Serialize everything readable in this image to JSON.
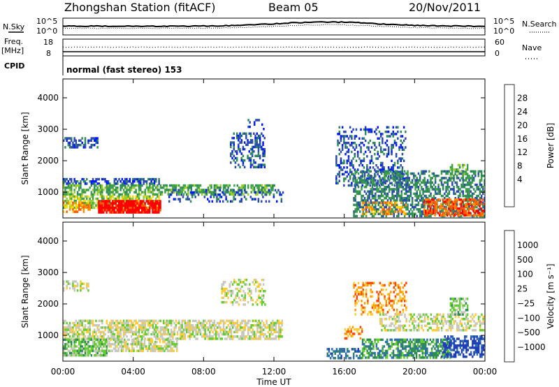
{
  "header": {
    "station": "Zhongshan Station (fitACF)",
    "beam": "Beam 05",
    "date": "20/Nov/2011"
  },
  "status": {
    "nsky_label": "N.Sky",
    "nsky_ticks": [
      "10^5",
      "10^0"
    ],
    "nsearch_label": "N.Search",
    "nsearch_ticks": [
      "10^5",
      "10^0"
    ],
    "freq_label": "Freq.",
    "freq_unit": "[MHz]",
    "freq_ticks": [
      "18",
      "8"
    ],
    "nave_label": "Nave",
    "nave_ticks": [
      "60",
      "0"
    ],
    "cpid_label": "CPID",
    "cpid_value": "normal (fast stereo) 153"
  },
  "colors": {
    "power": [
      "#0018ff",
      "#2b4bb0",
      "#2e8b57",
      "#3fa04b",
      "#9acd32",
      "#ffd700",
      "#ff8c00",
      "#ff5a00",
      "#ff0000"
    ],
    "velocity": [
      "#ff0000",
      "#ff4500",
      "#ff9900",
      "#ffcc33",
      "#c8c8bc",
      "#66cc33",
      "#2e8b57",
      "#2e6fae",
      "#1f3fb8"
    ],
    "grey": "#c4c4bc"
  },
  "chart_data": [
    {
      "type": "heatmap",
      "name": "Power",
      "ylabel": "Slant Range [km]",
      "xlabel": "",
      "x_ticks": [
        "00:00",
        "04:00",
        "08:00",
        "12:00",
        "16:00",
        "20:00",
        "00:00"
      ],
      "y_ticks": [
        1000,
        2000,
        3000,
        4000
      ],
      "xlim": [
        0,
        24
      ],
      "ylim": [
        180,
        4600
      ],
      "colorbar": {
        "label": "Power [dB]",
        "ticks": [
          "28",
          "24",
          "20",
          "16",
          "12",
          "8",
          "4"
        ]
      },
      "regions": [
        {
          "x": [
            0.0,
            2.0
          ],
          "y": [
            2450,
            2750
          ],
          "level": 1,
          "density": 0.55
        },
        {
          "x": [
            0.0,
            5.5
          ],
          "y": [
            1250,
            1450
          ],
          "level": 1,
          "density": 0.6
        },
        {
          "x": [
            0.0,
            12.0
          ],
          "y": [
            900,
            1250
          ],
          "level": 3,
          "density": 0.6
        },
        {
          "x": [
            0.0,
            5.5
          ],
          "y": [
            500,
            900
          ],
          "level": 4,
          "density": 0.7
        },
        {
          "x": [
            2.0,
            5.5
          ],
          "y": [
            350,
            750
          ],
          "level": 8,
          "density": 0.9
        },
        {
          "x": [
            0.0,
            1.5
          ],
          "y": [
            400,
            700
          ],
          "level": 6,
          "density": 0.6
        },
        {
          "x": [
            6.0,
            12.5
          ],
          "y": [
            700,
            1100
          ],
          "level": 1,
          "density": 0.25
        },
        {
          "x": [
            9.5,
            11.5
          ],
          "y": [
            1800,
            2900
          ],
          "level": 1,
          "density": 0.4
        },
        {
          "x": [
            10.5,
            11.5
          ],
          "y": [
            3000,
            3400
          ],
          "level": 1,
          "density": 0.15
        },
        {
          "x": [
            15.5,
            19.5
          ],
          "y": [
            1200,
            3100
          ],
          "level": 1,
          "density": 0.3
        },
        {
          "x": [
            16.5,
            24.0
          ],
          "y": [
            250,
            1700
          ],
          "level": 2,
          "density": 0.55
        },
        {
          "x": [
            20.5,
            24.0
          ],
          "y": [
            300,
            800
          ],
          "level": 7,
          "density": 0.6
        },
        {
          "x": [
            17.0,
            19.5
          ],
          "y": [
            300,
            700
          ],
          "level": 6,
          "density": 0.4
        },
        {
          "x": [
            22.0,
            23.0
          ],
          "y": [
            1500,
            1900
          ],
          "level": 3,
          "density": 0.5
        }
      ]
    },
    {
      "type": "heatmap",
      "name": "Velocity",
      "ylabel": "Slant Range [km]",
      "xlabel": "Time UT",
      "x_ticks": [
        "00:00",
        "04:00",
        "08:00",
        "12:00",
        "16:00",
        "20:00",
        "00:00"
      ],
      "y_ticks": [
        1000,
        2000,
        3000,
        4000
      ],
      "xlim": [
        0,
        24
      ],
      "ylim": [
        180,
        4600
      ],
      "colorbar": {
        "label": "Velocity [m s⁻¹]",
        "ticks": [
          "1000",
          "500",
          "100",
          "25",
          "−25",
          "−100",
          "−500",
          "−1000"
        ]
      },
      "regions": [
        {
          "x": [
            0.0,
            1.5
          ],
          "y": [
            2400,
            2750
          ],
          "level": 4,
          "density": 0.5
        },
        {
          "x": [
            0.0,
            12.5
          ],
          "y": [
            900,
            1500
          ],
          "level": 4,
          "density": 0.65
        },
        {
          "x": [
            0.0,
            2.5
          ],
          "y": [
            400,
            900
          ],
          "level": 5,
          "density": 0.75
        },
        {
          "x": [
            2.5,
            6.5
          ],
          "y": [
            500,
            900
          ],
          "level": 4,
          "density": 0.7
        },
        {
          "x": [
            9.0,
            11.5
          ],
          "y": [
            2000,
            2800
          ],
          "level": 4,
          "density": 0.4
        },
        {
          "x": [
            16.5,
            19.5
          ],
          "y": [
            1700,
            2700
          ],
          "level": 2,
          "density": 0.35
        },
        {
          "x": [
            16.0,
            17.0
          ],
          "y": [
            900,
            1300
          ],
          "level": 2,
          "density": 0.4
        },
        {
          "x": [
            17.0,
            22.0
          ],
          "y": [
            300,
            900
          ],
          "level": 6,
          "density": 0.65
        },
        {
          "x": [
            15.0,
            17.0
          ],
          "y": [
            300,
            600
          ],
          "level": 7,
          "density": 0.5
        },
        {
          "x": [
            21.5,
            24.0
          ],
          "y": [
            350,
            1000
          ],
          "level": 8,
          "density": 0.55
        },
        {
          "x": [
            18.0,
            24.0
          ],
          "y": [
            1200,
            1700
          ],
          "level": 4,
          "density": 0.45
        },
        {
          "x": [
            22.0,
            23.0
          ],
          "y": [
            1700,
            2200
          ],
          "level": 5,
          "density": 0.5
        }
      ]
    }
  ]
}
